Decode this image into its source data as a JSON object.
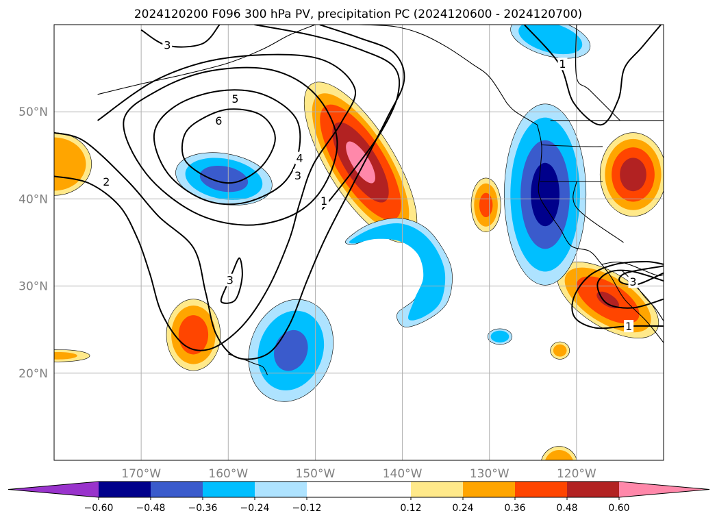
{
  "chart_data": {
    "type": "map",
    "title": "2024120200 F096 300 hPa PV, precipitation PC (2024120600 - 2024120700)",
    "extent": {
      "lon": [
        -180,
        -110
      ],
      "lat": [
        10,
        60
      ]
    },
    "grid": true,
    "lat_ticks": [
      {
        "value": 20,
        "label": "20°N"
      },
      {
        "value": 30,
        "label": "30°N"
      },
      {
        "value": 40,
        "label": "40°N"
      },
      {
        "value": 50,
        "label": "50°N"
      }
    ],
    "lon_ticks": [
      {
        "value": -170,
        "label": "170°W"
      },
      {
        "value": -160,
        "label": "160°W"
      },
      {
        "value": -150,
        "label": "150°W"
      },
      {
        "value": -140,
        "label": "140°W"
      },
      {
        "value": -130,
        "label": "130°W"
      },
      {
        "value": -120,
        "label": "120°W"
      }
    ],
    "colorbar": {
      "extend": "both",
      "boundaries": [
        -0.6,
        -0.48,
        -0.36,
        -0.24,
        -0.12,
        0.12,
        0.24,
        0.36,
        0.48,
        0.6
      ],
      "labels": [
        "−0.60",
        "−0.48",
        "−0.36",
        "−0.24",
        "−0.12",
        "0.12",
        "0.24",
        "0.36",
        "0.48",
        "0.60"
      ],
      "colors": [
        "#9933cc",
        "#00008b",
        "#3a5bcc",
        "#00bfff",
        "#aee3ff",
        "#ffffff",
        "#ffe98a",
        "#ffa500",
        "#ff4500",
        "#b22222",
        "#ff88aa"
      ]
    },
    "pv_contour_labels": [
      {
        "text": "3",
        "lon": -167.0,
        "lat": 57.7
      },
      {
        "text": "5",
        "lon": -159.2,
        "lat": 51.5
      },
      {
        "text": "6",
        "lon": -161.1,
        "lat": 49.0
      },
      {
        "text": "4",
        "lon": -151.8,
        "lat": 44.7
      },
      {
        "text": "3",
        "lon": -152.0,
        "lat": 42.7
      },
      {
        "text": "2",
        "lon": -174.0,
        "lat": 42.0
      },
      {
        "text": "1",
        "lon": -149.0,
        "lat": 39.8
      },
      {
        "text": "3",
        "lon": -159.8,
        "lat": 30.7
      },
      {
        "text": "1",
        "lon": -121.6,
        "lat": 55.5
      },
      {
        "text": "3",
        "lon": -113.5,
        "lat": 30.5
      },
      {
        "text": "1",
        "lon": -114.0,
        "lat": 25.4
      }
    ]
  }
}
